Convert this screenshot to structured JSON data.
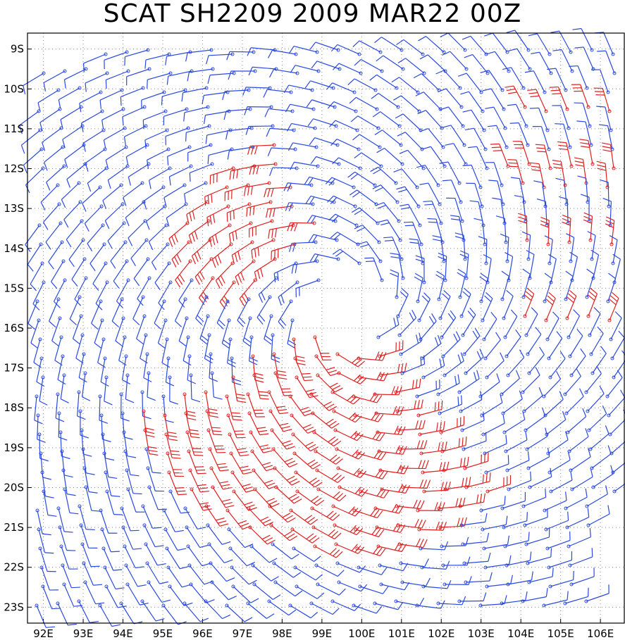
{
  "title": "SCAT SH2209 2009 MAR22 00Z",
  "map": {
    "lon_range": [
      91.6,
      106.6
    ],
    "lat_range": [
      -23.4,
      -8.6
    ],
    "grid": "dotted",
    "x_ticks": [
      "92E",
      "93E",
      "94E",
      "95E",
      "96E",
      "97E",
      "98E",
      "99E",
      "100E",
      "101E",
      "102E",
      "103E",
      "104E",
      "105E",
      "106E"
    ],
    "y_ticks": [
      "9S",
      "10S",
      "11S",
      "12S",
      "13S",
      "14S",
      "15S",
      "16S",
      "17S",
      "18S",
      "19S",
      "20S",
      "21S",
      "22S",
      "23S"
    ],
    "colors": {
      "low_wind": "#2a49e0",
      "high_wind": "#e02020",
      "grid": "#888888"
    }
  },
  "chart_data": {
    "type": "wind-barb-map",
    "title": "SCAT SH2209 2009 MAR22 00Z",
    "vortex_center": {
      "lon": 99.6,
      "lat": -15.6
    },
    "xlim": [
      91.6,
      106.6
    ],
    "ylim": [
      -23.4,
      -8.6
    ],
    "legend": "none",
    "series": [
      {
        "color": "#2a49e0"
      },
      {
        "color": "#e02020"
      }
    ]
  }
}
